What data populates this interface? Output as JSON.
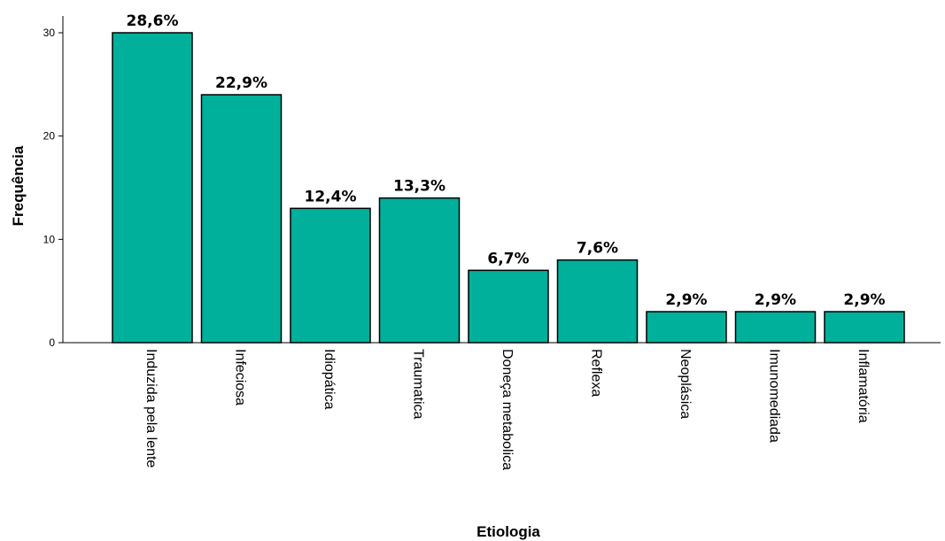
{
  "chart_data": {
    "type": "bar",
    "title": "",
    "xlabel": "Etiologia",
    "ylabel": "Frequência",
    "ylim": [
      0,
      30
    ],
    "yticks": [
      0,
      10,
      20,
      30
    ],
    "grid": false,
    "bar_color": "#00B09B",
    "bar_edge_color": "#000000",
    "categories": [
      "Induzida pela lente",
      "Infeciosa",
      "Idiopática",
      "Traumatica",
      "Doneça metabolica",
      "Reflexa",
      "Neoplásica",
      "Imunomediada",
      "Inflamatória"
    ],
    "values": [
      30,
      24,
      13,
      14,
      7,
      8,
      3,
      3,
      3
    ],
    "data_labels": [
      "28,6%",
      "22,9%",
      "12,4%",
      "13,3%",
      "6,7%",
      "7,6%",
      "2,9%",
      "2,9%",
      "2,9%"
    ]
  }
}
